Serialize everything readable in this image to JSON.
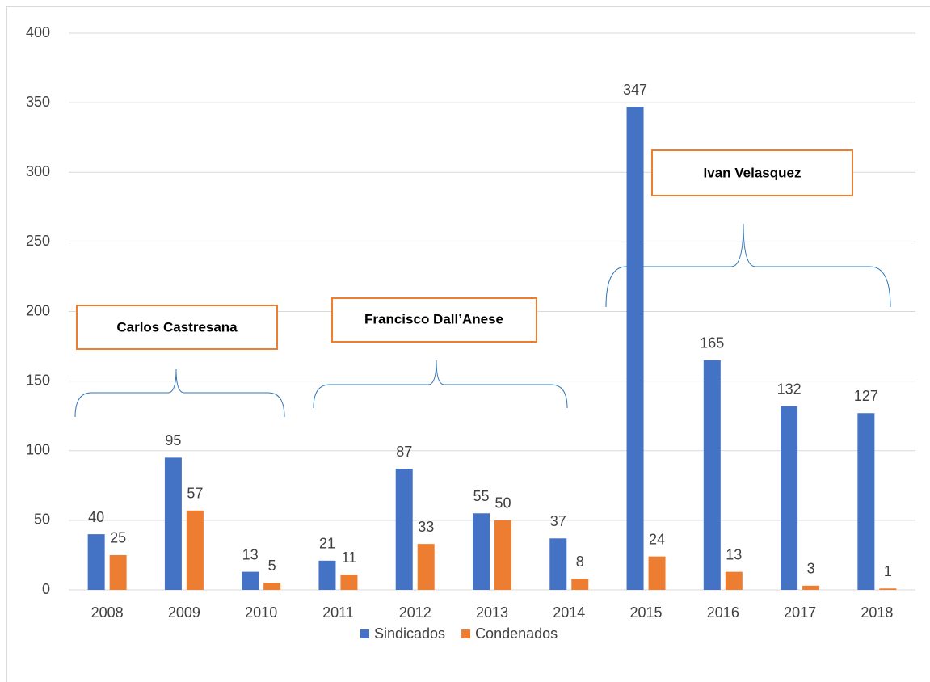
{
  "chart_data": {
    "type": "bar",
    "categories": [
      "2008",
      "2009",
      "2010",
      "2011",
      "2012",
      "2013",
      "2014",
      "2015",
      "2016",
      "2017",
      "2018"
    ],
    "series": [
      {
        "name": "Sindicados",
        "color": "#4472c4",
        "values": [
          40,
          95,
          13,
          21,
          87,
          55,
          37,
          347,
          165,
          132,
          127
        ]
      },
      {
        "name": "Condenados",
        "color": "#ed7d31",
        "values": [
          25,
          57,
          5,
          11,
          33,
          50,
          8,
          24,
          13,
          3,
          1
        ]
      }
    ],
    "ylim": [
      0,
      400
    ],
    "yticks": [
      0,
      50,
      100,
      150,
      200,
      250,
      300,
      350,
      400
    ],
    "grid": true,
    "legend": "bottom",
    "annotations": [
      "Carlos Castresana",
      "Francisco Dall’Anese",
      "Ivan Velasquez"
    ]
  }
}
